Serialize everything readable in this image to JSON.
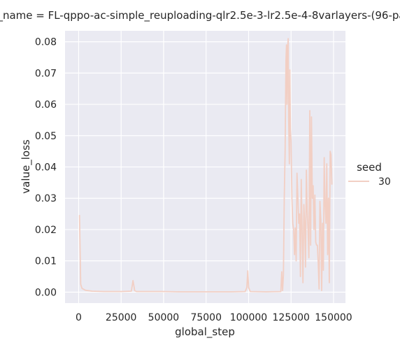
{
  "chart_data": {
    "type": "line",
    "title": "_name = FL-qppo-ac-simple_reuploading-qlr2.5e-3-lr2.5e-4-8varlayers-(96-pa",
    "xlabel": "global_step",
    "ylabel": "value_loss",
    "xlim": [
      -8000,
      157000
    ],
    "ylim": [
      -0.0035,
      0.0835
    ],
    "x_ticks": [
      0,
      25000,
      50000,
      75000,
      100000,
      125000,
      150000
    ],
    "x_tick_labels": [
      "0",
      "25000",
      "50000",
      "75000",
      "100000",
      "125000",
      "150000"
    ],
    "y_ticks": [
      0.0,
      0.01,
      0.02,
      0.03,
      0.04,
      0.05,
      0.06,
      0.07,
      0.08
    ],
    "y_tick_labels": [
      "0.00",
      "0.01",
      "0.02",
      "0.03",
      "0.04",
      "0.05",
      "0.06",
      "0.07",
      "0.08"
    ],
    "grid": true,
    "legend": {
      "title": "seed",
      "placement": "right"
    },
    "series": [
      {
        "name": "30",
        "color": "#f2cfc4",
        "x": [
          500,
          1200,
          2000,
          4000,
          8000,
          15000,
          25000,
          31000,
          32000,
          33000,
          34000,
          40000,
          50000,
          60000,
          75000,
          90000,
          98000,
          99000,
          99500,
          100000,
          101000,
          110000,
          119000,
          119500,
          120000,
          120500,
          121000,
          121500,
          122000,
          122300,
          122600,
          123000,
          123300,
          123600,
          124000,
          124300,
          124600,
          125000,
          125500,
          126000,
          126500,
          127000,
          127500,
          128000,
          128500,
          129000,
          129500,
          130000,
          130500,
          131000,
          131500,
          132000,
          132500,
          133000,
          133500,
          134000,
          134500,
          135000,
          135500,
          136000,
          136500,
          137000,
          137500,
          138000,
          138500,
          139000,
          139500,
          140000,
          140500,
          141000,
          141500,
          142000,
          142500,
          143000,
          143500,
          144000,
          144500,
          145000,
          145500,
          146000,
          146500,
          147000,
          147500,
          148000,
          148500,
          149000
        ],
        "values": [
          0.0245,
          0.0025,
          0.0012,
          0.0006,
          0.0003,
          0.0002,
          0.0002,
          0.0003,
          0.0037,
          0.0005,
          0.0002,
          0.0002,
          0.0002,
          0.0001,
          0.0001,
          0.0001,
          0.0002,
          0.0015,
          0.0068,
          0.0015,
          0.0002,
          0.0001,
          0.0002,
          0.0065,
          0.0005,
          0.0055,
          0.03,
          0.045,
          0.074,
          0.079,
          0.06,
          0.078,
          0.081,
          0.055,
          0.041,
          0.071,
          0.052,
          0.048,
          0.03,
          0.022,
          0.02,
          0.012,
          0.0205,
          0.01,
          0.038,
          0.03,
          0.022,
          0.025,
          0.005,
          0.036,
          0.02,
          0.003,
          0.028,
          0.022,
          0.008,
          0.039,
          0.026,
          0.02,
          0.011,
          0.058,
          0.015,
          0.056,
          0.03,
          0.034,
          0.02,
          0.031,
          0.016,
          0.015,
          0.015,
          0.009,
          0.001,
          0.029,
          0.023,
          0.0005,
          0.022,
          0.007,
          0.043,
          0.028,
          0.022,
          0.041,
          0.012,
          0.03,
          0.003,
          0.045,
          0.044,
          0.0345
        ]
      }
    ]
  }
}
